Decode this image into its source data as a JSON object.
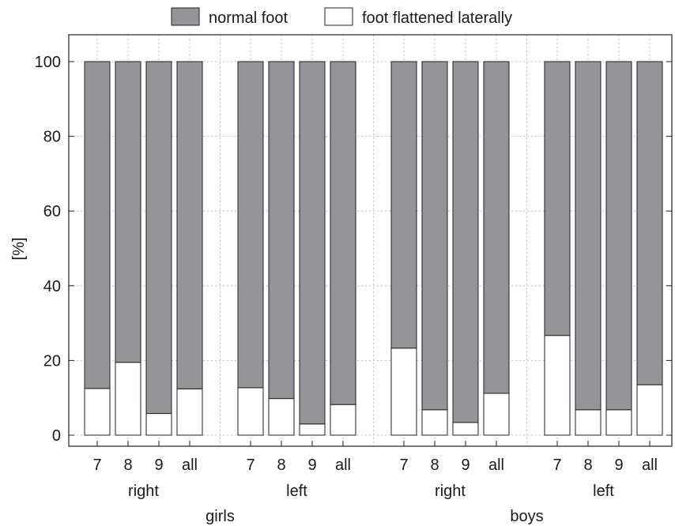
{
  "chart_data": {
    "type": "bar",
    "stacked": true,
    "ylabel": "[%]",
    "ylim": [
      0,
      100
    ],
    "yticks": [
      0,
      20,
      40,
      60,
      80,
      100
    ],
    "grid": true,
    "legend_position": "top-center",
    "series": [
      {
        "name": "normal foot",
        "color": "#939598",
        "values": [
          87.5,
          80.5,
          94.2,
          87.6,
          87.3,
          90.2,
          97.0,
          91.8,
          76.7,
          93.2,
          96.6,
          88.8,
          73.3,
          93.2,
          93.2,
          86.5
        ]
      },
      {
        "name": "foot flattened laterally",
        "color": "#ffffff",
        "values": [
          12.5,
          19.5,
          5.8,
          12.4,
          12.7,
          9.8,
          3.0,
          8.2,
          23.3,
          6.8,
          3.4,
          11.2,
          26.7,
          6.8,
          6.8,
          13.5
        ]
      }
    ],
    "categories": [
      "7",
      "8",
      "9",
      "all",
      "7",
      "8",
      "9",
      "all",
      "7",
      "8",
      "9",
      "all",
      "7",
      "8",
      "9",
      "all"
    ],
    "side_groups": [
      "right",
      "left",
      "right",
      "left"
    ],
    "sex_groups": [
      "girls",
      "boys"
    ]
  }
}
